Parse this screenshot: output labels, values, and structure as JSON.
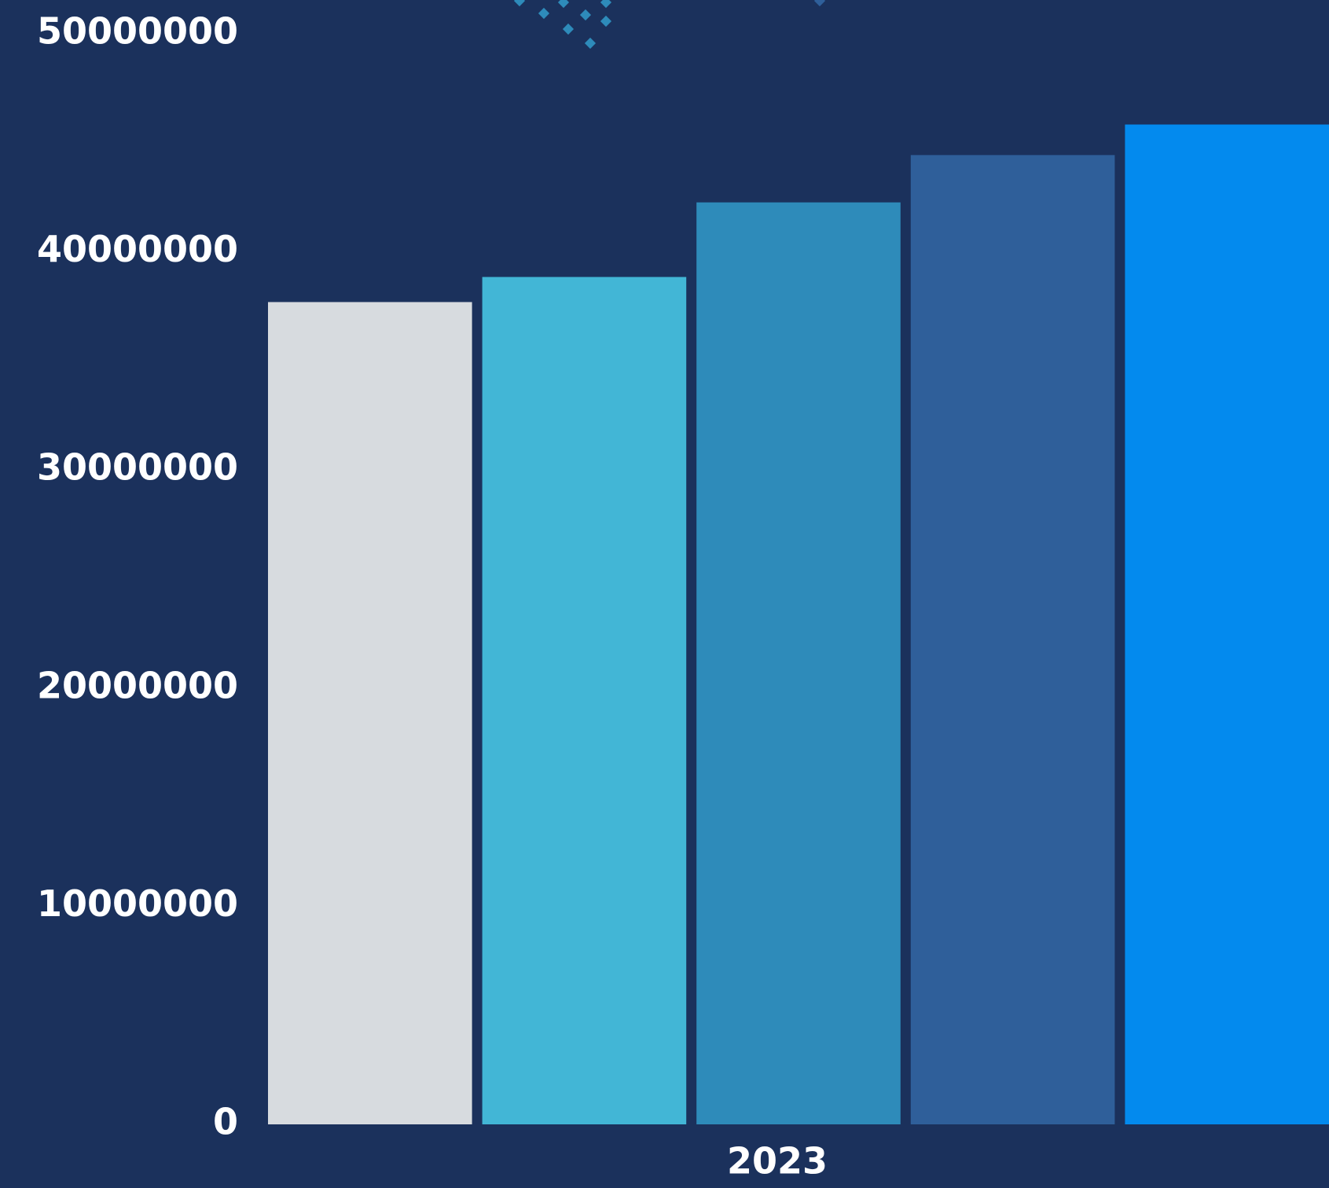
{
  "chart_data": {
    "type": "bar",
    "categories": [
      "2023"
    ],
    "series": [
      {
        "color": "#d7dbdf",
        "values": [
          37700000
        ]
      },
      {
        "color": "#42b6d6",
        "values": [
          38850000
        ]
      },
      {
        "color": "#2e8bba",
        "values": [
          42270000
        ]
      },
      {
        "color": "#2f5f9a",
        "values": [
          44440000
        ]
      },
      {
        "color": "#038aee",
        "values": [
          45840000
        ]
      }
    ],
    "ylim": [
      0,
      50000000
    ],
    "yticks": [
      0,
      10000000,
      20000000,
      30000000,
      40000000,
      50000000
    ],
    "grid": false
  }
}
